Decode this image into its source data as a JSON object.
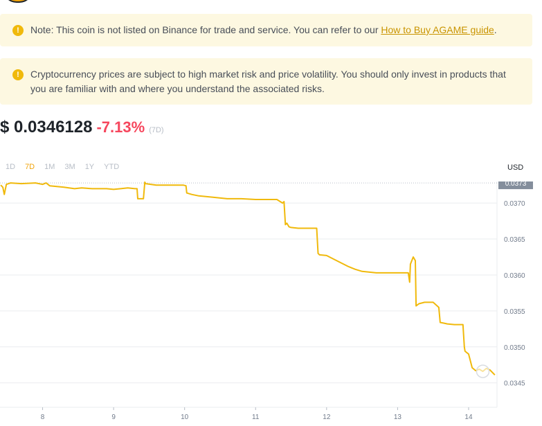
{
  "notices": [
    {
      "prefix": "Note: This coin is not listed on Binance for trade and service. You can refer to our ",
      "link": "How to Buy AGAME guide",
      "suffix": "."
    },
    {
      "text": "Cryptocurrency prices are subject to high market risk and price volatility. You should only invest in products that you are familiar with and where you understand the associated risks."
    }
  ],
  "price": {
    "value": "$ 0.0346128",
    "change": "-7.13%",
    "period": "(7D)"
  },
  "tabs": [
    "1D",
    "7D",
    "1M",
    "3M",
    "1Y",
    "YTD"
  ],
  "active_tab": "7D",
  "currency": "USD",
  "colors": {
    "line": "#f0b90b",
    "negative": "#f6465d",
    "accent": "#f0a30a",
    "notice_bg": "#fdf8e1"
  },
  "chart_data": {
    "type": "line",
    "x_ticks": [
      "8",
      "9",
      "10",
      "11",
      "12",
      "13",
      "14"
    ],
    "y_ticks": [
      "0.0345",
      "0.0350",
      "0.0355",
      "0.0360",
      "0.0365",
      "0.0370"
    ],
    "current_label": "0.0373",
    "current_value": 0.03728,
    "ylim": [
      0.03416,
      0.0373
    ],
    "xlim": [
      7.4,
      14.4
    ],
    "series": [
      {
        "x": [
          7.41,
          7.44,
          7.46,
          7.49,
          7.55,
          7.7,
          7.9,
          8.0,
          8.05,
          8.1,
          8.2,
          8.3,
          8.45,
          8.55,
          8.7,
          8.9,
          9.0,
          9.1,
          9.2,
          9.3,
          9.33,
          9.34,
          9.42,
          9.44,
          9.45,
          9.6,
          9.8,
          9.98,
          10.02,
          10.03,
          10.1,
          10.2,
          10.4,
          10.6,
          10.8,
          11.0,
          11.2,
          11.3,
          11.38,
          11.4,
          11.42,
          11.44,
          11.47,
          11.5,
          11.6,
          11.75,
          11.86,
          11.88,
          11.9,
          12.0,
          12.1,
          12.3,
          12.4,
          12.5,
          12.7,
          12.9,
          13.05,
          13.15,
          13.17,
          13.18,
          13.22,
          13.25,
          13.26,
          13.3,
          13.38,
          13.5,
          13.58,
          13.6,
          13.65,
          13.7,
          13.8,
          13.92,
          13.94,
          13.95,
          14.0,
          14.05,
          14.1,
          14.15,
          14.2,
          14.25,
          14.3,
          14.37
        ],
        "y": [
          0.03725,
          0.03722,
          0.03712,
          0.03726,
          0.03728,
          0.03727,
          0.03728,
          0.03726,
          0.03728,
          0.03724,
          0.03723,
          0.03722,
          0.0372,
          0.03721,
          0.0372,
          0.0372,
          0.03719,
          0.0372,
          0.03721,
          0.0372,
          0.0372,
          0.03706,
          0.03706,
          0.03729,
          0.03727,
          0.03725,
          0.03725,
          0.03725,
          0.03724,
          0.03714,
          0.03712,
          0.0371,
          0.03708,
          0.03706,
          0.03706,
          0.03705,
          0.03705,
          0.03705,
          0.037,
          0.03702,
          0.0367,
          0.03672,
          0.03667,
          0.03666,
          0.03665,
          0.03665,
          0.03665,
          0.0363,
          0.03628,
          0.03627,
          0.03622,
          0.03612,
          0.03608,
          0.03605,
          0.03603,
          0.03603,
          0.03603,
          0.03603,
          0.0359,
          0.03615,
          0.03625,
          0.0362,
          0.03557,
          0.0356,
          0.03562,
          0.03562,
          0.03555,
          0.03534,
          0.03533,
          0.03532,
          0.03531,
          0.03531,
          0.035,
          0.03494,
          0.0349,
          0.03471,
          0.03467,
          0.03469,
          0.03466,
          0.0347,
          0.03468,
          0.03461
        ]
      }
    ]
  }
}
